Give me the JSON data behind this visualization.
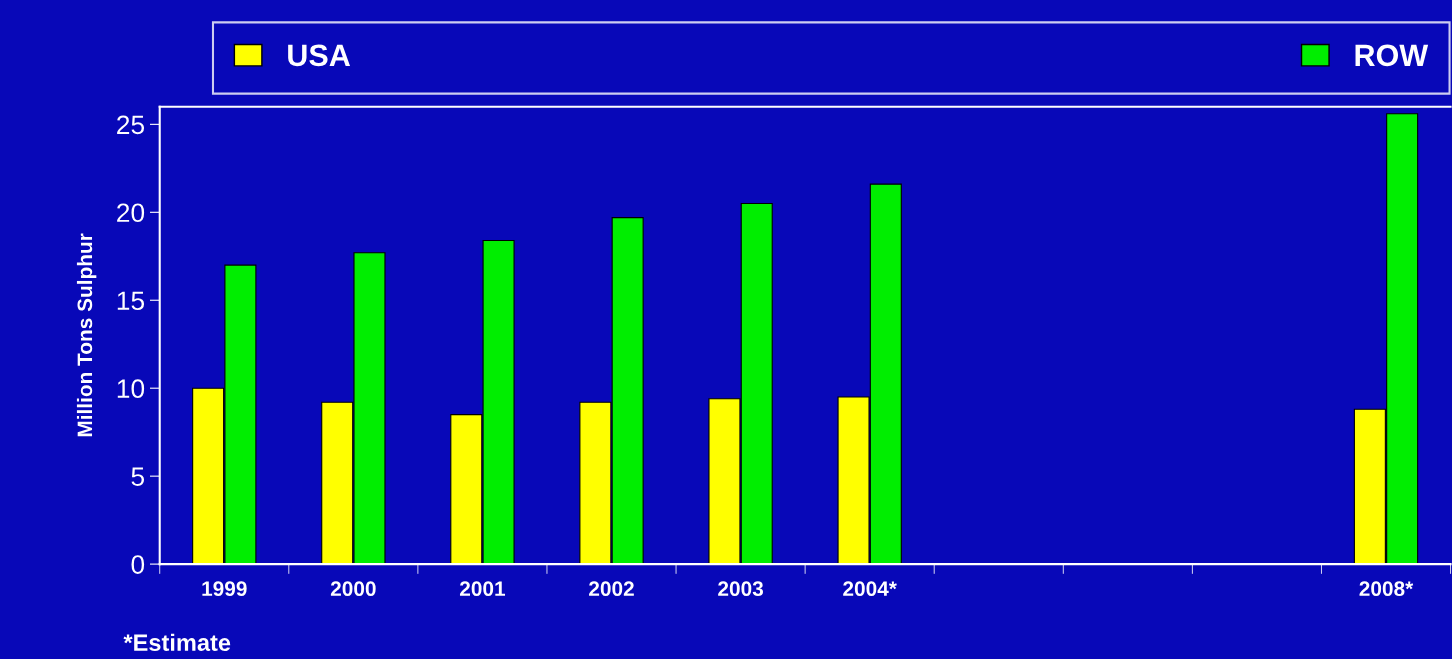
{
  "chart_data": {
    "type": "bar",
    "ylabel": "Million Tons Sulphur",
    "categories": [
      "1999",
      "2000",
      "2001",
      "2002",
      "2003",
      "2004*",
      null,
      null,
      null,
      "2008*"
    ],
    "series": [
      {
        "name": "USA",
        "color": "#ffff00",
        "values": [
          10.0,
          9.2,
          8.5,
          9.2,
          9.4,
          9.5,
          null,
          null,
          null,
          8.8
        ]
      },
      {
        "name": "ROW",
        "color": "#00ee00",
        "values": [
          17.0,
          17.7,
          18.4,
          19.7,
          20.5,
          21.6,
          null,
          null,
          null,
          25.6
        ]
      }
    ],
    "ylim": [
      0,
      26
    ],
    "yticks": [
      0,
      5,
      10,
      15,
      20,
      25
    ],
    "grid": false,
    "legend": "top",
    "annotations": [
      "*Estimate"
    ]
  }
}
